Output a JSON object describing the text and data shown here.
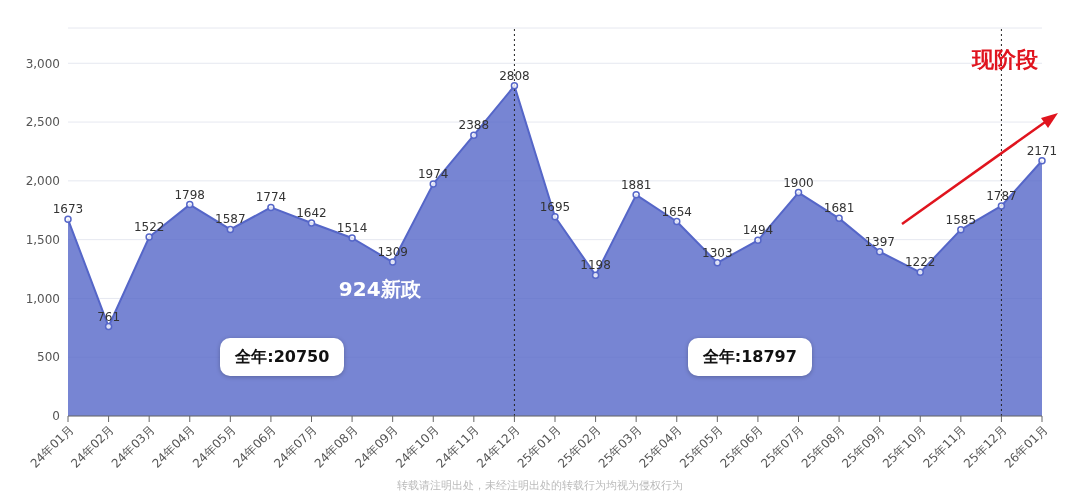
{
  "chart_data": {
    "type": "area",
    "categories": [
      "24年01月",
      "24年02月",
      "24年03月",
      "24年04月",
      "24年05月",
      "24年06月",
      "24年07月",
      "24年08月",
      "24年09月",
      "24年10月",
      "24年11月",
      "24年12月",
      "25年01月",
      "25年02月",
      "25年03月",
      "25年04月",
      "25年05月",
      "25年06月",
      "25年07月",
      "25年08月",
      "25年09月",
      "25年10月",
      "25年11月",
      "25年12月",
      "26年01月"
    ],
    "series": [
      {
        "color": "#5566c8",
        "values": [
          1673,
          761,
          1522,
          1798,
          1587,
          1774,
          1642,
          1514,
          1309,
          1974,
          2388,
          2808,
          1695,
          1198,
          1881,
          1654,
          1303,
          1494,
          1900,
          1681,
          1397,
          1222,
          1585,
          1787,
          2171
        ]
      }
    ],
    "ylim": [
      0,
      3300
    ],
    "yticks": [
      0,
      500,
      {
        "value": 1000,
        "label": "1,000"
      },
      {
        "value": 1500,
        "label": "1,500"
      },
      {
        "value": 2000,
        "label": "2,000"
      },
      {
        "value": 2500,
        "label": "2,500"
      },
      {
        "value": 3000,
        "label": "3,000"
      }
    ],
    "grid": "y",
    "marker": "circle",
    "data_labels": true,
    "ref_lines": [
      {
        "axis": "x",
        "value": "24年12月",
        "line_style": "dotted",
        "color": "#222222"
      },
      {
        "axis": "x",
        "value": "25年12月",
        "line_style": "dotted",
        "color": "#222222"
      }
    ],
    "annotations": [
      "924新政",
      "全年:20750",
      "全年:18797",
      "现阶段",
      "转载请注明出处，未经注明出处的转载行为均视为侵权行为"
    ]
  }
}
